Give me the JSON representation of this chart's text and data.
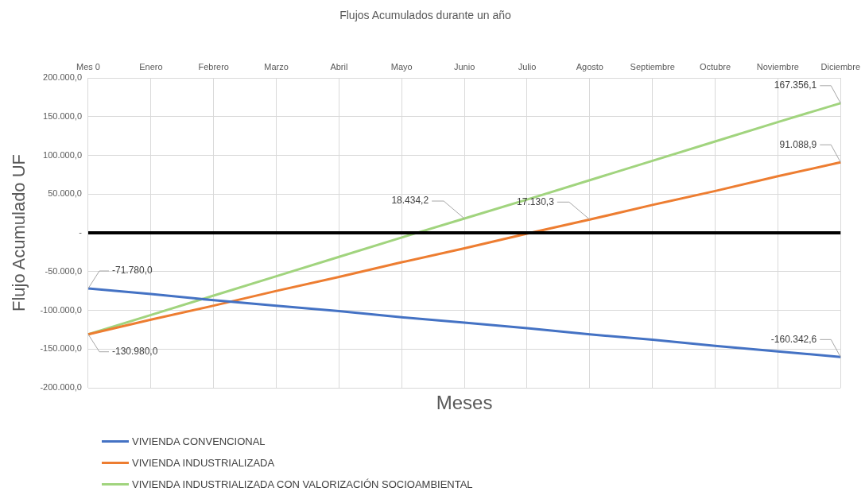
{
  "chart_data": {
    "type": "line",
    "title": "Flujos Acumulados durante un año",
    "xlabel": "Meses",
    "ylabel": "Flujo Acumulado UF",
    "categories": [
      "Mes 0",
      "Enero",
      "Febrero",
      "Marzo",
      "Abril",
      "Mayo",
      "Junio",
      "Julio",
      "Agosto",
      "Septiembre",
      "Octubre",
      "Noviembre",
      "Diciembre"
    ],
    "series": [
      {
        "name": "VIVIENDA CONVENCIONAL",
        "color": "#4472c4",
        "values": [
          -71780,
          -79000,
          -87000,
          -94000,
          -101000,
          -109000,
          -116000,
          -123000,
          -131000,
          -138000,
          -146000,
          -153000,
          -160342.6
        ],
        "value_labels": [
          "-71.780,0",
          null,
          null,
          null,
          null,
          null,
          null,
          null,
          null,
          null,
          null,
          null,
          "-160.342,6"
        ]
      },
      {
        "name": "VIVIENDA INDUSTRIALIZADA",
        "color": "#ed7d31",
        "values": [
          -130980,
          -112000,
          -94000,
          -75000,
          -57000,
          -38000,
          -20000,
          -1000,
          17130.3,
          36000,
          54000,
          73000,
          91088.9
        ],
        "value_labels": [
          "-130.980,0",
          null,
          null,
          null,
          null,
          null,
          null,
          null,
          "17.130,3",
          null,
          null,
          null,
          "91.088,9"
        ]
      },
      {
        "name": "VIVIENDA INDUSTRIALIZADA CON VALORIZACIÓN SOCIOAMBIENTAL",
        "color": "#a1d47e",
        "values": [
          -130980,
          -106000,
          -81000,
          -56000,
          -31000,
          -6000,
          18434.2,
          43000,
          68000,
          93000,
          118000,
          143000,
          167356.1
        ],
        "value_labels": [
          null,
          null,
          null,
          null,
          null,
          null,
          "18.434,2",
          null,
          null,
          null,
          null,
          null,
          "167.356,1"
        ]
      }
    ],
    "ylim": [
      -200000,
      200000
    ],
    "yticks": [
      {
        "value": -200000,
        "label": "-200.000,0"
      },
      {
        "value": -150000,
        "label": "-150.000,0"
      },
      {
        "value": -100000,
        "label": "-100.000,0"
      },
      {
        "value": -50000,
        "label": "-50.000,0"
      },
      {
        "value": 0,
        "label": "-"
      },
      {
        "value": 50000,
        "label": "50.000,0"
      },
      {
        "value": 100000,
        "label": "100.000,0"
      },
      {
        "value": 150000,
        "label": "150.000,0"
      },
      {
        "value": 200000,
        "label": "200.000,0"
      }
    ],
    "ref_lines": [
      {
        "axis": "y",
        "value": 0,
        "color": "#000000"
      }
    ],
    "grid": true,
    "legend": "bottom left"
  }
}
